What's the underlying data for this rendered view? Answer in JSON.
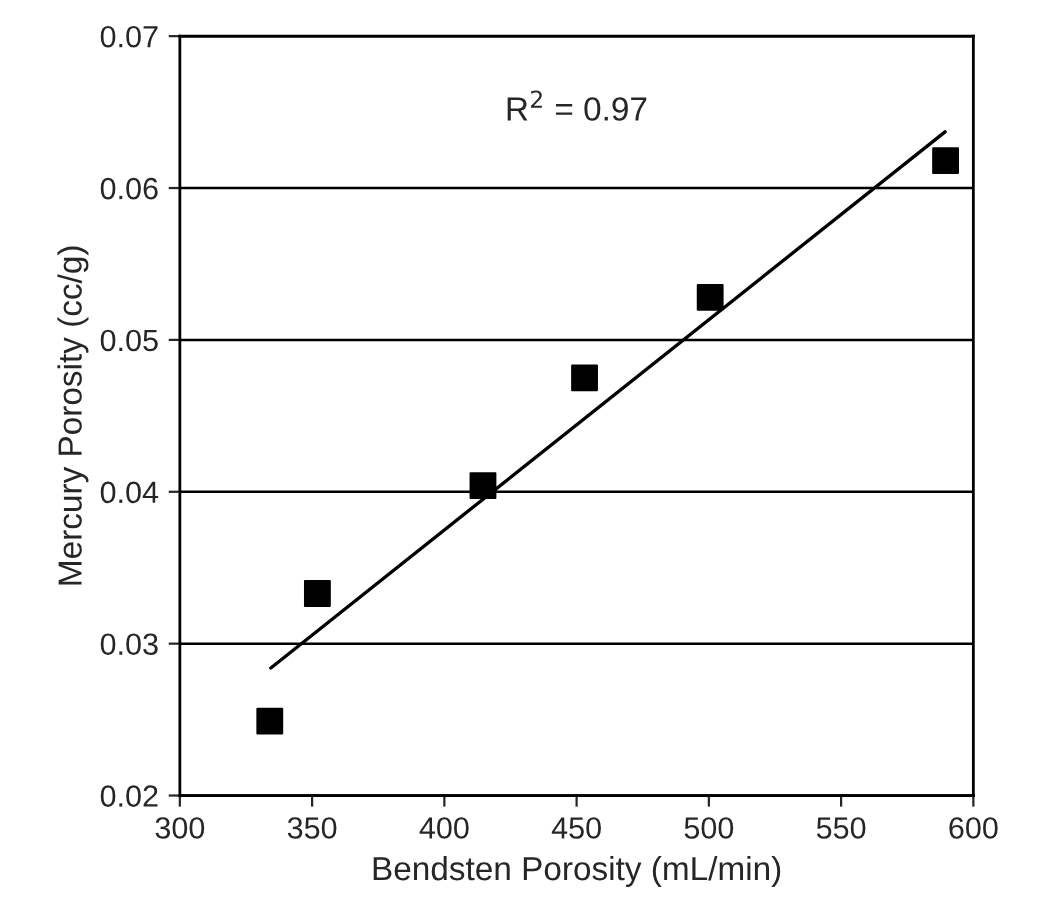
{
  "chart_data": {
    "type": "scatter",
    "xlabel": "Bendsten Porosity (mL/min)",
    "ylabel": "Mercury Porosity (cc/g)",
    "xlim": [
      300,
      600
    ],
    "xticks": [
      300,
      350,
      400,
      450,
      500,
      550,
      600
    ],
    "ylim": [
      0.02,
      0.07
    ],
    "yticks": [
      0.02,
      0.03,
      0.04,
      0.05,
      0.06,
      0.07
    ],
    "grid": "y",
    "legend": false,
    "annotations": [
      "R$^{2}$ = 0.97"
    ],
    "series": [
      {
        "marker": "square",
        "color": "#000000",
        "x": [
          334,
          352,
          414.6,
          453,
          500.5,
          589.5
        ],
        "values": [
          0.0249,
          0.0333,
          0.0404,
          0.0475,
          0.0528,
          0.0618
        ]
      },
      {
        "type": "line",
        "marker": "none",
        "color": "#000000",
        "x": [
          334.4,
          589.3
        ],
        "values": [
          0.0284,
          0.0637
        ]
      }
    ]
  }
}
